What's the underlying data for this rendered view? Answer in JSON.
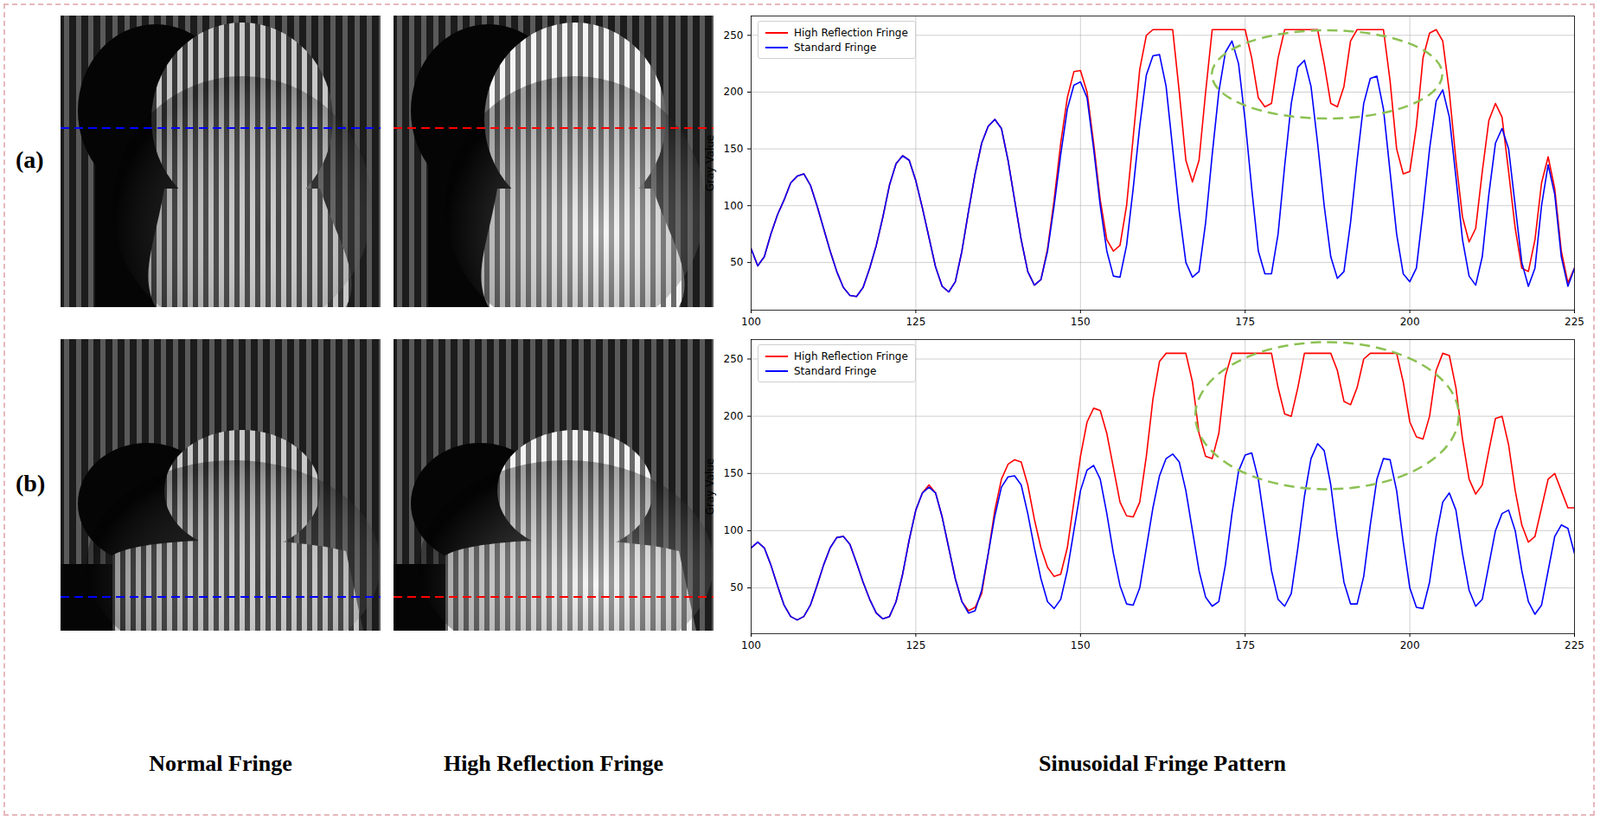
{
  "figure": {
    "panel_labels": [
      "(a)",
      "(b)"
    ],
    "column_titles": [
      "Normal Fringe",
      "High Reflection Fringe",
      "Sinusoidal Fringe Pattern"
    ]
  },
  "chart_data": [
    {
      "type": "line",
      "ylabel": "Gray Value",
      "x": [
        100,
        101,
        102,
        103,
        104,
        105,
        106,
        107,
        108,
        109,
        110,
        111,
        112,
        113,
        114,
        115,
        116,
        117,
        118,
        119,
        120,
        121,
        122,
        123,
        124,
        125,
        126,
        127,
        128,
        129,
        130,
        131,
        132,
        133,
        134,
        135,
        136,
        137,
        138,
        139,
        140,
        141,
        142,
        143,
        144,
        145,
        146,
        147,
        148,
        149,
        150,
        151,
        152,
        153,
        154,
        155,
        156,
        157,
        158,
        159,
        160,
        161,
        162,
        163,
        164,
        165,
        166,
        167,
        168,
        169,
        170,
        171,
        172,
        173,
        174,
        175,
        176,
        177,
        178,
        179,
        180,
        181,
        182,
        183,
        184,
        185,
        186,
        187,
        188,
        189,
        190,
        191,
        192,
        193,
        194,
        195,
        196,
        197,
        198,
        199,
        200,
        201,
        202,
        203,
        204,
        205,
        206,
        207,
        208,
        209,
        210,
        211,
        212,
        213,
        214,
        215,
        216,
        217,
        218,
        219,
        220,
        221,
        222,
        223,
        224,
        225
      ],
      "series": [
        {
          "name": "High Reflection Fringe",
          "color": "#ff0000",
          "values": [
            62,
            47,
            55,
            75,
            92,
            105,
            120,
            126,
            128,
            118,
            100,
            80,
            60,
            42,
            28,
            21,
            20,
            28,
            45,
            65,
            90,
            118,
            137,
            144,
            140,
            122,
            98,
            72,
            46,
            29,
            24,
            33,
            60,
            95,
            128,
            155,
            170,
            176,
            168,
            140,
            105,
            70,
            42,
            30,
            35,
            62,
            105,
            155,
            195,
            218,
            219,
            200,
            155,
            105,
            70,
            60,
            65,
            100,
            160,
            220,
            250,
            255,
            255,
            255,
            255,
            200,
            140,
            121,
            140,
            200,
            255,
            255,
            255,
            255,
            255,
            255,
            230,
            195,
            187,
            190,
            230,
            255,
            255,
            255,
            255,
            255,
            255,
            225,
            190,
            187,
            205,
            245,
            255,
            255,
            255,
            255,
            255,
            210,
            150,
            128,
            130,
            170,
            230,
            252,
            255,
            245,
            200,
            140,
            90,
            68,
            80,
            130,
            175,
            190,
            178,
            130,
            80,
            45,
            42,
            70,
            120,
            143,
            115,
            60,
            32,
            45
          ]
        },
        {
          "name": "Standard Fringe",
          "color": "#0000ff",
          "values": [
            62,
            47,
            55,
            75,
            92,
            105,
            120,
            126,
            128,
            118,
            100,
            80,
            60,
            42,
            28,
            21,
            20,
            28,
            45,
            65,
            90,
            118,
            137,
            144,
            140,
            122,
            98,
            72,
            46,
            29,
            24,
            33,
            60,
            95,
            128,
            155,
            170,
            176,
            168,
            140,
            105,
            70,
            42,
            30,
            35,
            60,
            100,
            145,
            185,
            206,
            209,
            195,
            150,
            100,
            60,
            38,
            37,
            65,
            115,
            170,
            215,
            232,
            233,
            205,
            150,
            95,
            50,
            37,
            42,
            85,
            145,
            200,
            235,
            245,
            225,
            175,
            115,
            60,
            40,
            40,
            75,
            135,
            190,
            222,
            228,
            205,
            155,
            100,
            55,
            36,
            42,
            85,
            140,
            190,
            212,
            214,
            185,
            130,
            75,
            40,
            33,
            45,
            95,
            150,
            192,
            202,
            178,
            125,
            70,
            38,
            30,
            55,
            110,
            155,
            168,
            150,
            100,
            50,
            29,
            45,
            100,
            136,
            110,
            55,
            29,
            45
          ]
        }
      ],
      "xlim": [
        100,
        225
      ],
      "ylim": [
        8,
        267
      ],
      "xticks": [
        100,
        125,
        150,
        175,
        200,
        225
      ],
      "yticks": [
        50,
        100,
        150,
        200,
        250
      ],
      "grid": true,
      "legend": "upper left"
    },
    {
      "type": "line",
      "ylabel": "Gray Value",
      "x": [
        100,
        101,
        102,
        103,
        104,
        105,
        106,
        107,
        108,
        109,
        110,
        111,
        112,
        113,
        114,
        115,
        116,
        117,
        118,
        119,
        120,
        121,
        122,
        123,
        124,
        125,
        126,
        127,
        128,
        129,
        130,
        131,
        132,
        133,
        134,
        135,
        136,
        137,
        138,
        139,
        140,
        141,
        142,
        143,
        144,
        145,
        146,
        147,
        148,
        149,
        150,
        151,
        152,
        153,
        154,
        155,
        156,
        157,
        158,
        159,
        160,
        161,
        162,
        163,
        164,
        165,
        166,
        167,
        168,
        169,
        170,
        171,
        172,
        173,
        174,
        175,
        176,
        177,
        178,
        179,
        180,
        181,
        182,
        183,
        184,
        185,
        186,
        187,
        188,
        189,
        190,
        191,
        192,
        193,
        194,
        195,
        196,
        197,
        198,
        199,
        200,
        201,
        202,
        203,
        204,
        205,
        206,
        207,
        208,
        209,
        210,
        211,
        212,
        213,
        214,
        215,
        216,
        217,
        218,
        219,
        220,
        221,
        222,
        223,
        224,
        225
      ],
      "series": [
        {
          "name": "High Reflection Fringe",
          "color": "#ff0000",
          "values": [
            85,
            90,
            85,
            70,
            52,
            35,
            25,
            22,
            25,
            35,
            52,
            70,
            85,
            94,
            95,
            88,
            72,
            55,
            40,
            28,
            23,
            25,
            38,
            62,
            92,
            118,
            133,
            140,
            133,
            112,
            85,
            58,
            38,
            30,
            33,
            45,
            80,
            118,
            145,
            158,
            162,
            160,
            140,
            110,
            85,
            68,
            60,
            62,
            85,
            125,
            165,
            195,
            207,
            205,
            185,
            155,
            125,
            113,
            112,
            125,
            165,
            215,
            248,
            255,
            255,
            255,
            255,
            230,
            185,
            165,
            163,
            185,
            235,
            255,
            255,
            255,
            255,
            255,
            255,
            255,
            225,
            202,
            200,
            225,
            255,
            255,
            255,
            255,
            255,
            240,
            213,
            210,
            225,
            250,
            255,
            255,
            255,
            255,
            255,
            230,
            195,
            182,
            180,
            200,
            240,
            255,
            253,
            225,
            180,
            145,
            132,
            140,
            170,
            198,
            200,
            175,
            135,
            105,
            90,
            95,
            120,
            145,
            150,
            135,
            120,
            120
          ]
        },
        {
          "name": "Standard Fringe",
          "color": "#0000ff",
          "values": [
            85,
            90,
            85,
            70,
            52,
            35,
            25,
            22,
            25,
            35,
            52,
            70,
            85,
            94,
            95,
            88,
            72,
            55,
            40,
            28,
            23,
            25,
            38,
            62,
            92,
            118,
            133,
            138,
            133,
            112,
            85,
            58,
            38,
            28,
            30,
            48,
            80,
            113,
            138,
            147,
            148,
            140,
            115,
            85,
            58,
            38,
            32,
            40,
            65,
            100,
            135,
            153,
            157,
            145,
            115,
            80,
            52,
            36,
            35,
            50,
            85,
            120,
            148,
            163,
            167,
            160,
            135,
            100,
            65,
            42,
            34,
            38,
            70,
            115,
            152,
            166,
            168,
            145,
            105,
            65,
            40,
            34,
            45,
            85,
            130,
            163,
            176,
            170,
            140,
            95,
            55,
            36,
            36,
            60,
            105,
            145,
            163,
            162,
            135,
            90,
            50,
            33,
            32,
            55,
            95,
            125,
            133,
            118,
            80,
            48,
            34,
            40,
            70,
            100,
            115,
            118,
            100,
            65,
            38,
            27,
            35,
            65,
            95,
            105,
            102,
            80
          ]
        }
      ],
      "xlim": [
        100,
        225
      ],
      "ylim": [
        10,
        267
      ],
      "xticks": [
        100,
        125,
        150,
        175,
        200,
        225
      ],
      "yticks": [
        50,
        100,
        150,
        200,
        250
      ],
      "grid": true,
      "legend": "upper left"
    }
  ]
}
